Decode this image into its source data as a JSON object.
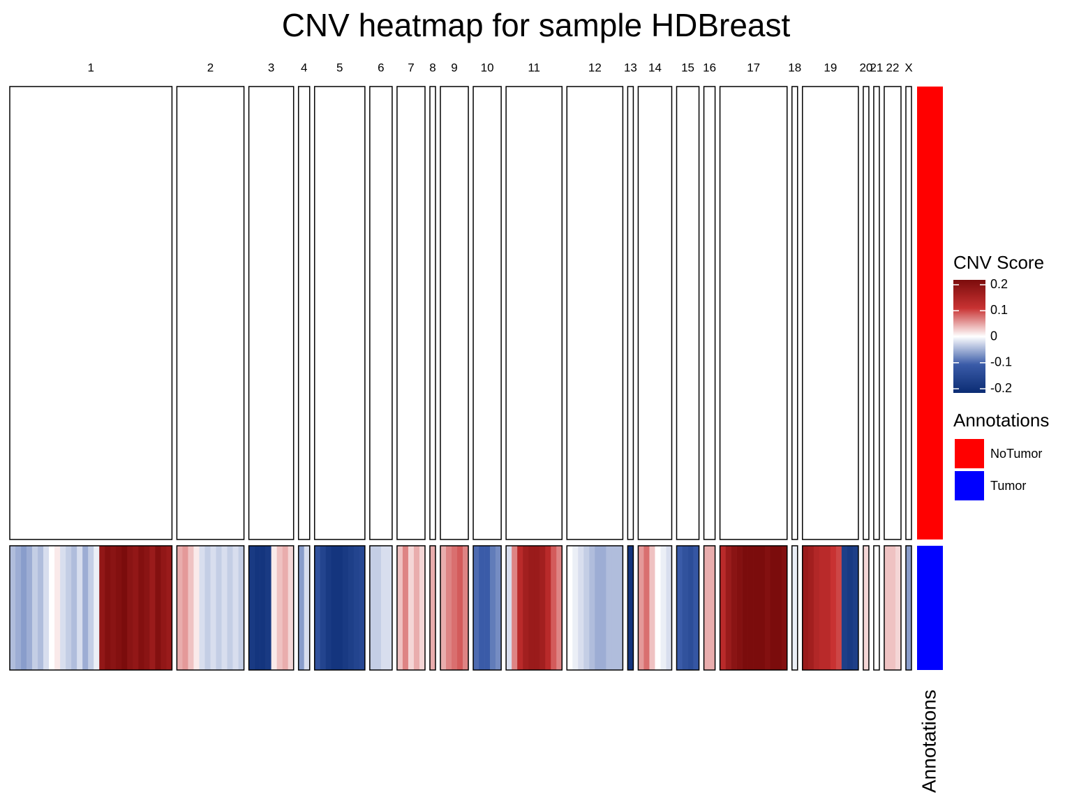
{
  "chart_data": {
    "type": "heatmap",
    "title": "CNV heatmap for sample HDBreast",
    "categories": [
      "1",
      "2",
      "3",
      "4",
      "5",
      "6",
      "7",
      "8",
      "9",
      "10",
      "11",
      "12",
      "13",
      "14",
      "15",
      "16",
      "17",
      "18",
      "19",
      "20",
      "21",
      "22",
      "X"
    ],
    "series": [
      {
        "name": "NoTumor",
        "color": "#ff0000",
        "values": [
          [
            0,
            0,
            0,
            0,
            0,
            0,
            0,
            0,
            0,
            0,
            0,
            0,
            0,
            0,
            0,
            0,
            0,
            0,
            0,
            0,
            0,
            0,
            0,
            0,
            0,
            0,
            0,
            0,
            0
          ],
          [
            0,
            0,
            0,
            0,
            0,
            0,
            0,
            0,
            0,
            0,
            0,
            0
          ],
          [
            0,
            0,
            0,
            0,
            0,
            0,
            0,
            0
          ],
          [
            0,
            0
          ],
          [
            0,
            0,
            0,
            0,
            0,
            0,
            0,
            0,
            0
          ],
          [
            0,
            0,
            0,
            0
          ],
          [
            0,
            0,
            0,
            0,
            0
          ],
          [
            0
          ],
          [
            0,
            0,
            0,
            0,
            0
          ],
          [
            0,
            0,
            0,
            0,
            0
          ],
          [
            0,
            0,
            0,
            0,
            0,
            0,
            0,
            0,
            0,
            0
          ],
          [
            0,
            0,
            0,
            0,
            0,
            0,
            0,
            0,
            0,
            0
          ],
          [
            0
          ],
          [
            0,
            0,
            0,
            0,
            0,
            0
          ],
          [
            0,
            0,
            0,
            0
          ],
          [
            0,
            0
          ],
          [
            0,
            0,
            0,
            0,
            0,
            0,
            0,
            0,
            0,
            0,
            0,
            0
          ],
          [
            0
          ],
          [
            0,
            0,
            0,
            0,
            0,
            0,
            0,
            0,
            0,
            0
          ],
          [
            0
          ],
          [
            0
          ],
          [
            0,
            0,
            0
          ],
          [
            0
          ]
        ]
      },
      {
        "name": "Tumor",
        "color": "#0000ff",
        "values": [
          [
            -0.04,
            -0.05,
            -0.06,
            -0.05,
            -0.03,
            -0.04,
            -0.02,
            0,
            0.01,
            -0.02,
            -0.03,
            -0.04,
            -0.02,
            -0.05,
            -0.03,
            -0.01,
            0.17,
            0.19,
            0.18,
            0.19,
            0.2,
            0.18,
            0.17,
            0.19,
            0.18,
            0.16,
            0.19,
            0.17,
            0.16
          ],
          [
            0.04,
            0.05,
            0.03,
            0.01,
            -0.02,
            -0.03,
            -0.02,
            -0.03,
            -0.02,
            -0.03,
            -0.02,
            -0.03
          ],
          [
            -0.17,
            -0.18,
            -0.18,
            -0.17,
            0.01,
            0.03,
            0.04,
            0.02
          ],
          [
            -0.06,
            -0.02
          ],
          [
            -0.12,
            -0.15,
            -0.17,
            -0.18,
            -0.18,
            -0.17,
            -0.16,
            -0.15,
            -0.14
          ],
          [
            -0.03,
            -0.03,
            -0.02,
            -0.02
          ],
          [
            0.03,
            0.06,
            0.02,
            0.04,
            0.02
          ],
          [
            0.04
          ],
          [
            0.04,
            0.06,
            0.07,
            0.08,
            0.06
          ],
          [
            -0.09,
            -0.1,
            -0.1,
            -0.08,
            -0.07
          ],
          [
            -0.02,
            0.06,
            0.12,
            0.15,
            0.16,
            0.16,
            0.15,
            0.12,
            0.08,
            0.06
          ],
          [
            0,
            -0.01,
            -0.02,
            -0.03,
            -0.04,
            -0.05,
            -0.05,
            -0.04,
            -0.04,
            -0.04
          ],
          [
            -0.18
          ],
          [
            0.05,
            0.07,
            0.03,
            0,
            -0.01,
            -0.02
          ],
          [
            -0.1,
            -0.12,
            -0.13,
            -0.11
          ],
          [
            0.04,
            0.04
          ],
          [
            0.12,
            0.16,
            0.18,
            0.19,
            0.2,
            0.2,
            0.2,
            0.2,
            0.19,
            0.2,
            0.2,
            0.19
          ],
          [
            -0.01
          ],
          [
            0.16,
            0.15,
            0.13,
            0.12,
            0.12,
            0.1,
            0.09,
            -0.16,
            -0.17,
            -0.16
          ],
          [
            0.02
          ],
          [
            0
          ],
          [
            0.03,
            0.03,
            0.02
          ],
          [
            -0.06
          ]
        ]
      }
    ],
    "colorbar": {
      "title": "CNV Score",
      "lim": [
        -0.2,
        0.2
      ],
      "ticks": [
        -0.2,
        -0.1,
        0,
        0.1,
        0.2
      ],
      "colors": [
        "#0b2c73",
        "#3a5ba8",
        "#ffffff",
        "#c83232",
        "#7b0c0c"
      ]
    },
    "annotation_legend_title": "Annotations",
    "annotation_axis_label": "Annotations"
  }
}
